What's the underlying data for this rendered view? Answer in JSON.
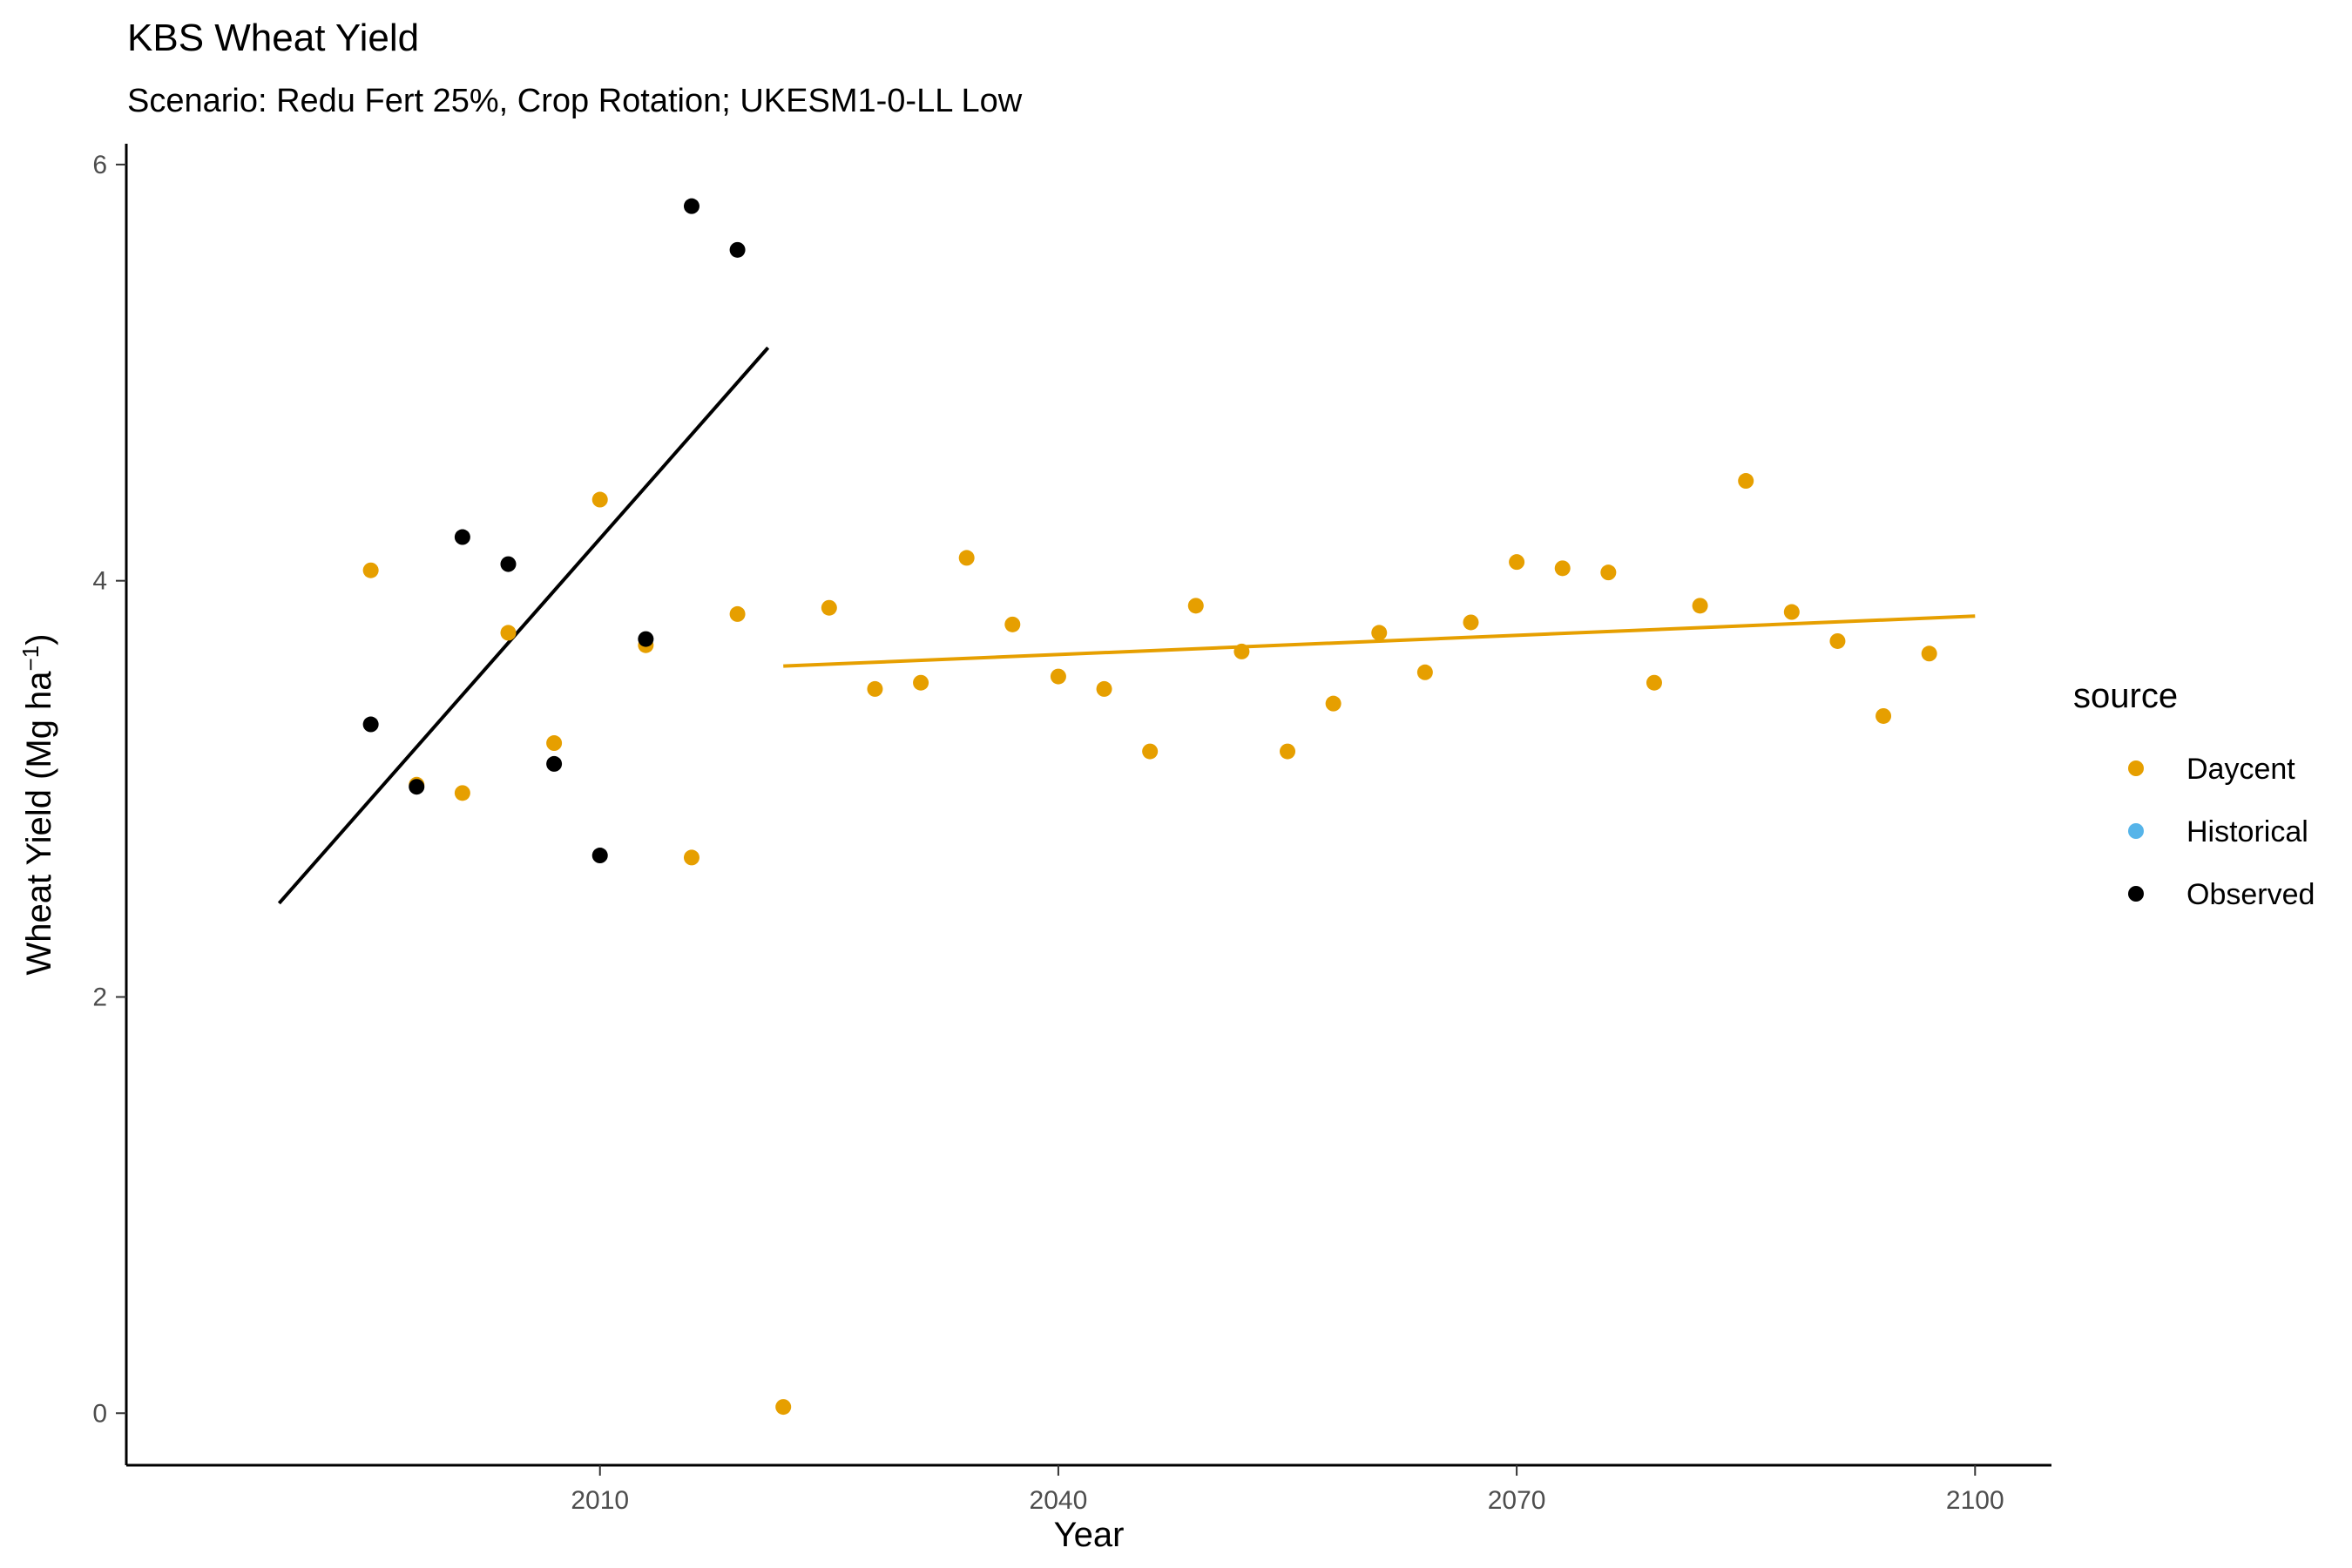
{
  "chart_data": {
    "type": "scatter",
    "title": "KBS Wheat Yield",
    "subtitle": "Scenario: Redu Fert 25%, Crop Rotation; UKESM1-0-LL Low",
    "xlabel": "Year",
    "ylabel_main": "Wheat Yield (Mg ha",
    "ylabel_sup": "−1",
    "ylabel_close": ")",
    "xlim": [
      1979,
      2105
    ],
    "ylim": [
      -0.25,
      6.1
    ],
    "x_ticks": [
      2010,
      2040,
      2070,
      2100
    ],
    "x_tick_labels": [
      "2010",
      "2040",
      "2070",
      "2100"
    ],
    "y_ticks": [
      0,
      2,
      4,
      6
    ],
    "y_tick_labels": [
      "0",
      "2",
      "4",
      "6"
    ],
    "grid": false,
    "legend": {
      "title": "source",
      "placement": "right",
      "entries": [
        {
          "label": "Daycent",
          "color": "#E69F00"
        },
        {
          "label": "Historical",
          "color": "#56B4E9"
        },
        {
          "label": "Observed",
          "color": "#000000"
        }
      ]
    },
    "series": [
      {
        "name": "Daycent",
        "color": "#E69F00",
        "points": [
          [
            1995,
            4.05
          ],
          [
            1998,
            3.02
          ],
          [
            2001,
            2.98
          ],
          [
            2004,
            3.75
          ],
          [
            2007,
            3.22
          ],
          [
            2010,
            4.39
          ],
          [
            2013,
            3.69
          ],
          [
            2016,
            2.67
          ],
          [
            2019,
            3.84
          ],
          [
            2022,
            0.03
          ],
          [
            2025,
            3.87
          ],
          [
            2028,
            3.48
          ],
          [
            2031,
            3.51
          ],
          [
            2034,
            4.11
          ],
          [
            2037,
            3.79
          ],
          [
            2040,
            3.54
          ],
          [
            2043,
            3.48
          ],
          [
            2046,
            3.18
          ],
          [
            2049,
            3.88
          ],
          [
            2052,
            3.66
          ],
          [
            2055,
            3.18
          ],
          [
            2058,
            3.41
          ],
          [
            2061,
            3.75
          ],
          [
            2064,
            3.56
          ],
          [
            2067,
            3.8
          ],
          [
            2070,
            4.09
          ],
          [
            2073,
            4.06
          ],
          [
            2076,
            4.04
          ],
          [
            2079,
            3.51
          ],
          [
            2082,
            3.88
          ],
          [
            2085,
            4.48
          ],
          [
            2088,
            3.85
          ],
          [
            2091,
            3.71
          ],
          [
            2094,
            3.35
          ],
          [
            2097,
            3.65
          ]
        ]
      },
      {
        "name": "Historical",
        "color": "#56B4E9",
        "points": []
      },
      {
        "name": "Observed",
        "color": "#000000",
        "points": [
          [
            1995,
            3.31
          ],
          [
            1998,
            3.01
          ],
          [
            2001,
            4.21
          ],
          [
            2004,
            4.08
          ],
          [
            2007,
            3.12
          ],
          [
            2010,
            2.68
          ],
          [
            2013,
            3.72
          ],
          [
            2016,
            5.8
          ],
          [
            2019,
            5.59
          ]
        ]
      }
    ],
    "trend_lines": [
      {
        "series": "Observed",
        "color": "#000000",
        "x": [
          1989,
          2021
        ],
        "y": [
          2.45,
          5.12
        ]
      },
      {
        "series": "Daycent",
        "color": "#E69F00",
        "x": [
          2022,
          2100
        ],
        "y": [
          3.59,
          3.83
        ]
      }
    ]
  }
}
